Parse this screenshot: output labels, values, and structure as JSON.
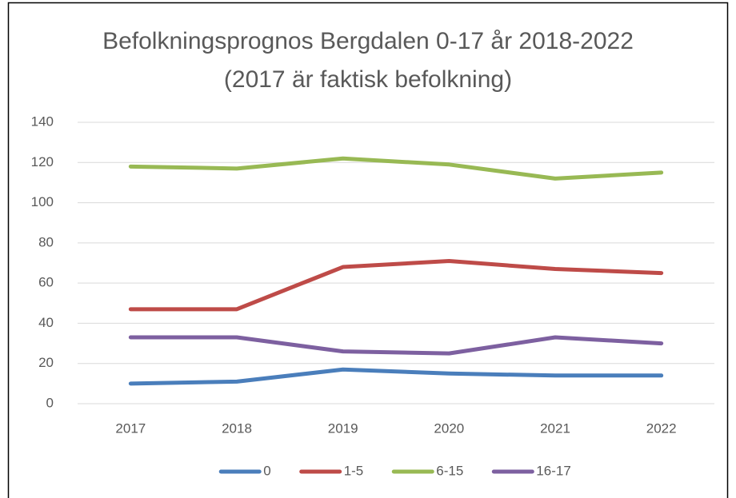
{
  "chart_data": {
    "type": "line",
    "title": "Befolkningsprognos Bergdalen 0-17 år 2018-2022 (2017 är faktisk befolkning)",
    "categories": [
      "2017",
      "2018",
      "2019",
      "2020",
      "2021",
      "2022"
    ],
    "series": [
      {
        "name": "0",
        "color": "#4a7ebb",
        "values": [
          10,
          11,
          17,
          15,
          14,
          14
        ]
      },
      {
        "name": "1-5",
        "color": "#be4b48",
        "values": [
          47,
          47,
          68,
          71,
          67,
          65
        ]
      },
      {
        "name": "6-15",
        "color": "#98b954",
        "values": [
          118,
          117,
          122,
          119,
          112,
          115
        ]
      },
      {
        "name": "16-17",
        "color": "#7d60a0",
        "values": [
          33,
          33,
          26,
          25,
          33,
          30
        ]
      }
    ],
    "ylim": [
      0,
      140
    ],
    "yticks": [
      0,
      20,
      40,
      60,
      80,
      100,
      120,
      140
    ],
    "grid": true,
    "legend": "bottom"
  }
}
